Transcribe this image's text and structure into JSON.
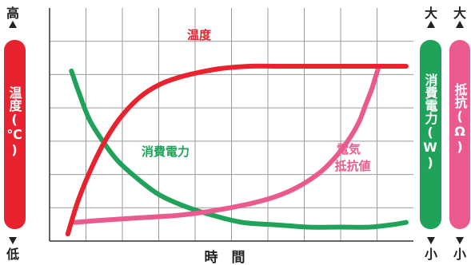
{
  "chart_data": {
    "type": "line",
    "xlabel": "時　間",
    "left_axis": {
      "label": "温度(℃)",
      "top_label": "高",
      "bottom_label": "低",
      "color": "#e8222e"
    },
    "right_axes": [
      {
        "label": "消費電力(W)",
        "top_label": "大",
        "bottom_label": "小",
        "color": "#1fa35a"
      },
      {
        "label": "抵抗(Ω)",
        "top_label": "大",
        "bottom_label": "小",
        "color": "#ea5a8e"
      }
    ],
    "grid": true,
    "xlim": [
      0,
      100
    ],
    "ylim": [
      0,
      100
    ],
    "series": [
      {
        "name": "温度",
        "color": "#e8222e",
        "x": [
          5,
          8,
          12,
          16,
          20,
          25,
          30,
          35,
          40,
          47,
          55,
          63,
          72,
          80,
          88,
          94,
          98
        ],
        "y": [
          3,
          18,
          33,
          45,
          54,
          62,
          67,
          70,
          72,
          74,
          75,
          75,
          75,
          75,
          75,
          75,
          75
        ]
      },
      {
        "name": "消費電力",
        "color": "#1fa35a",
        "x": [
          6,
          8,
          11,
          15,
          19,
          24,
          30,
          37,
          45,
          53,
          62,
          71,
          80,
          88,
          94,
          98
        ],
        "y": [
          73,
          64,
          52,
          42,
          34,
          27,
          20,
          15,
          11,
          8,
          7,
          6,
          6,
          6,
          7,
          8
        ]
      },
      {
        "name": "電気抵抗値",
        "color": "#ea5a8e",
        "x": [
          7,
          15,
          25,
          35,
          45,
          55,
          62,
          68,
          74,
          78,
          82,
          85,
          87,
          88.5,
          89.5,
          90.3
        ],
        "y": [
          8,
          9,
          10,
          11,
          13,
          16,
          19,
          23,
          29,
          35,
          43,
          51,
          59,
          65,
          70,
          74
        ]
      }
    ],
    "annotations": [
      {
        "text": "温度",
        "series": 0
      },
      {
        "text": "消費電力",
        "series": 1
      },
      {
        "text_lines": [
          "電気",
          "抵抗値"
        ],
        "series": 2
      }
    ]
  }
}
